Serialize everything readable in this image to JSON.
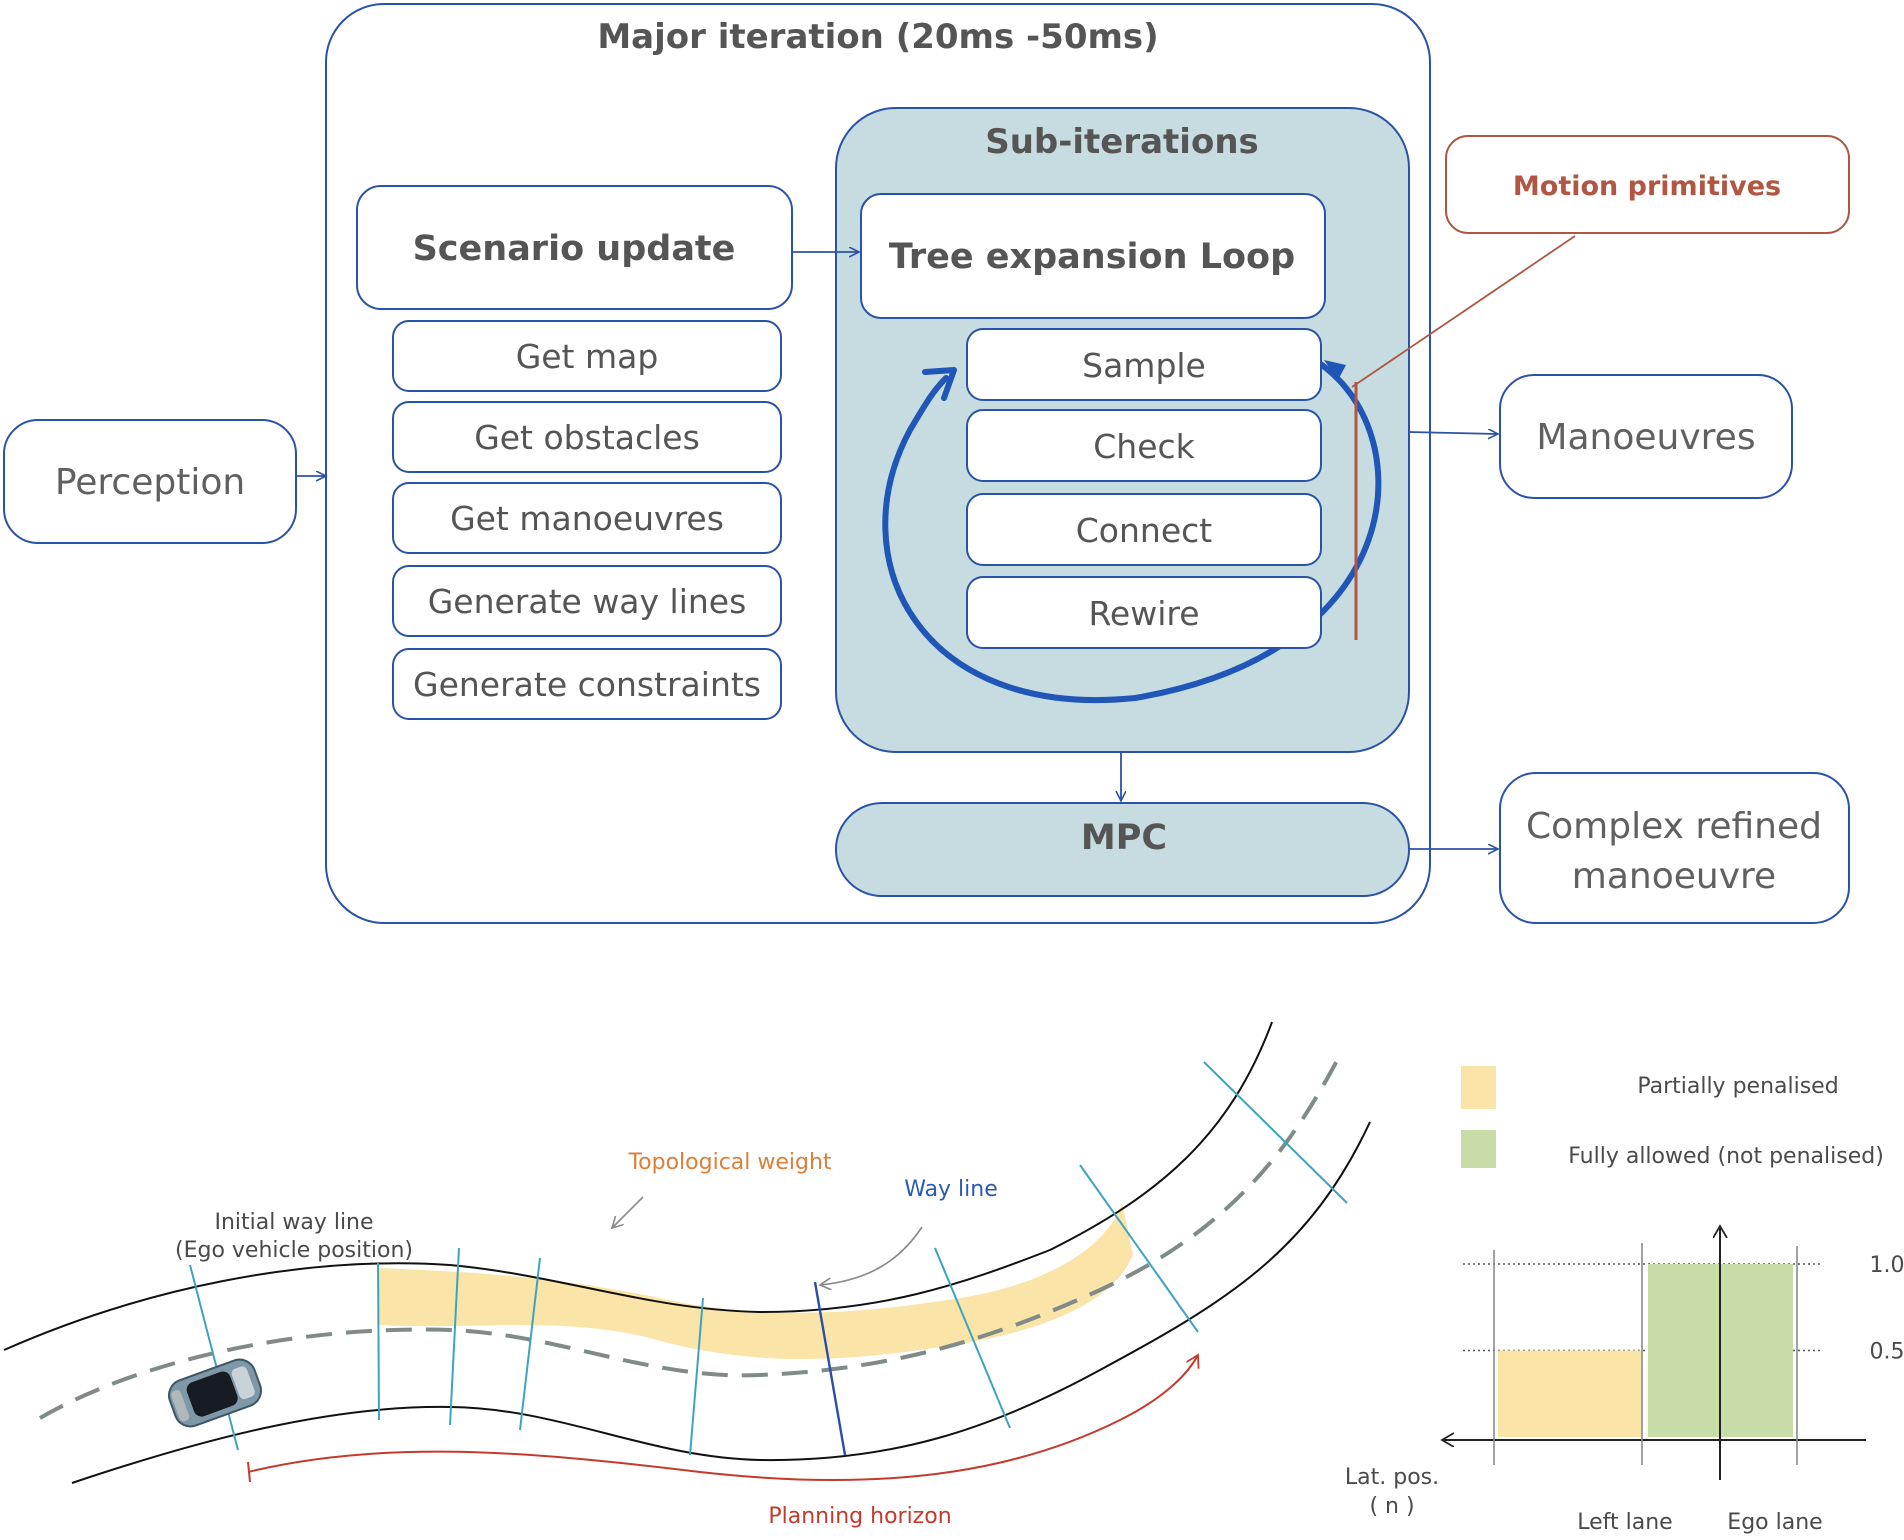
{
  "flow": {
    "major_title": "Major iteration (20ms  -50ms)",
    "sub_title": "Sub-iterations",
    "scenario_update": "Scenario update",
    "scenario_steps": [
      "Get map",
      "Get obstacles",
      "Get manoeuvres",
      "Generate way lines",
      "Generate constraints"
    ],
    "tree_expansion": "Tree expansion Loop",
    "loop_steps": [
      "Sample",
      "Check",
      "Connect",
      "Rewire"
    ],
    "mpc": "MPC",
    "perception": "Perception",
    "motion_primitives": "Motion primitives",
    "manoeuvres": "Manoeuvres",
    "complex_refined": [
      "Complex refined",
      "manoeuvre"
    ]
  },
  "road": {
    "initial_way_line": [
      "Initial way line",
      "(Ego vehicle position)"
    ],
    "topological_weight": "Topological weight",
    "way_line": "Way line",
    "planning_horizon": "Planning horizon"
  },
  "weight_chart": {
    "legend": [
      "Partially penalised",
      "Fully allowed (not penalised)"
    ],
    "y_ticks": [
      "1.0",
      "0.5"
    ],
    "x_axis_label": [
      "Lat. pos.",
      "( n )"
    ],
    "categories": [
      "Left lane",
      "Ego lane"
    ]
  },
  "colors": {
    "box_border": "#2a52a8",
    "sub_fill": "#c6dce0",
    "loop_arrow": "#1f56b8",
    "motion_primitive_red": "#b05642",
    "yellow": "#fae4a8",
    "green": "#c8dca8",
    "waylines": "#3ea3c0",
    "planning_red": "#c43b2e",
    "topo_orange": "#de7f38",
    "wayline_label_blue": "#2a5bb5"
  },
  "chart_data": {
    "type": "bar",
    "categories": [
      "Left lane",
      "Ego lane"
    ],
    "values": [
      0.5,
      1.0
    ],
    "series": [
      {
        "name": "Partially penalised",
        "values": [
          0.5,
          null
        ]
      },
      {
        "name": "Fully allowed (not penalised)",
        "values": [
          null,
          1.0
        ]
      }
    ],
    "xlabel": "Lat. pos. ( n )",
    "ylabel": "",
    "yticks": [
      0.5,
      1.0
    ],
    "legend_position": "top-right"
  }
}
